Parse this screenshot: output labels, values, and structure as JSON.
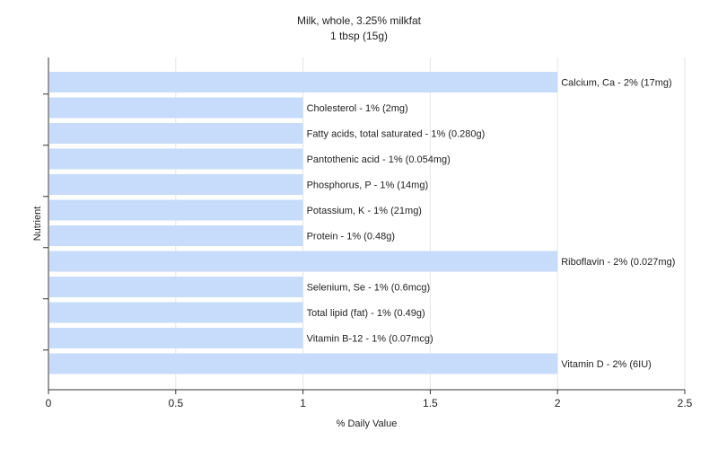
{
  "chart_data": {
    "type": "bar",
    "orientation": "horizontal",
    "title": "Milk, whole, 3.25% milkfat",
    "subtitle": "1 tbsp (15g)",
    "xlabel": "% Daily Value",
    "ylabel": "Nutrient",
    "xlim": [
      0,
      2.5
    ],
    "xticks": [
      "0",
      "0.5",
      "1",
      "1.5",
      "2",
      "2.5"
    ],
    "xtick_values": [
      0,
      0.5,
      1,
      1.5,
      2,
      2.5
    ],
    "grid": "vertical",
    "bar_color": "#c6dcfa",
    "categories": [
      "Calcium, Ca",
      "Cholesterol",
      "Fatty acids, total saturated",
      "Pantothenic acid",
      "Phosphorus, P",
      "Potassium, K",
      "Protein",
      "Riboflavin",
      "Selenium, Se",
      "Total lipid (fat)",
      "Vitamin B-12",
      "Vitamin D"
    ],
    "values": [
      2,
      1,
      1,
      1,
      1,
      1,
      1,
      2,
      1,
      1,
      1,
      2
    ],
    "labels": [
      "Calcium, Ca - 2% (17mg)",
      "Cholesterol - 1% (2mg)",
      "Fatty acids, total saturated - 1% (0.280g)",
      "Pantothenic acid - 1% (0.054mg)",
      "Phosphorus, P - 1% (14mg)",
      "Potassium, K - 1% (21mg)",
      "Protein - 1% (0.48g)",
      "Riboflavin - 2% (0.027mg)",
      "Selenium, Se - 1% (0.6mcg)",
      "Total lipid (fat) - 1% (0.49g)",
      "Vitamin B-12 - 1% (0.07mcg)",
      "Vitamin D - 2% (6IU)"
    ]
  }
}
